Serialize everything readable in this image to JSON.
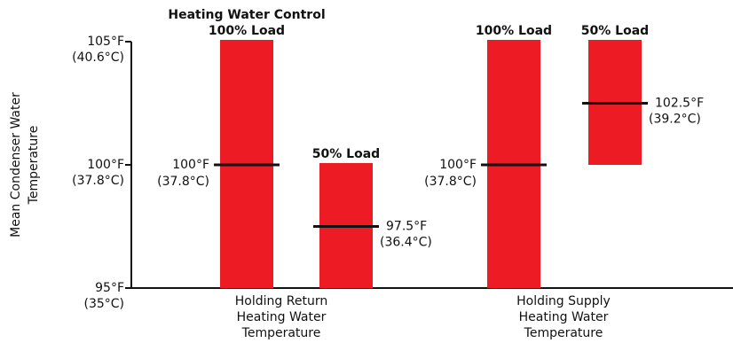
{
  "chart_data": {
    "type": "bar",
    "ylabel": [
      "Mean Condenser Water",
      "Temperature"
    ],
    "ylim": [
      95,
      105
    ],
    "y_ticks": [
      {
        "value": 105,
        "label_f": "105°F",
        "label_c": "(40.6°C)"
      },
      {
        "value": 100,
        "label_f": "100°F",
        "label_c": "(37.8°C)"
      },
      {
        "value": 95,
        "label_f": "95°F",
        "label_c": "(35°C)"
      }
    ],
    "groups": [
      {
        "label": [
          "Holding Return",
          "Heating Water",
          "Temperature"
        ],
        "bars": [
          {
            "title": [
              "Heating Water Control",
              "100% Load"
            ],
            "low": 95,
            "high": 105,
            "mean": 100,
            "mean_label_f": "100°F",
            "mean_label_c": "(37.8°C)",
            "label_side": "left"
          },
          {
            "title": [
              "50% Load"
            ],
            "low": 95,
            "high": 100,
            "mean": 97.5,
            "mean_label_f": "97.5°F",
            "mean_label_c": "(36.4°C)",
            "label_side": "right"
          }
        ]
      },
      {
        "label": [
          "Holding Supply",
          "Heating Water",
          "Temperature"
        ],
        "bars": [
          {
            "title": [
              "100% Load"
            ],
            "low": 95,
            "high": 105,
            "mean": 100,
            "mean_label_f": "100°F",
            "mean_label_c": "(37.8°C)",
            "label_side": "left"
          },
          {
            "title": [
              "50% Load"
            ],
            "low": 100,
            "high": 105,
            "mean": 102.5,
            "mean_label_f": "102.5°F",
            "mean_label_c": "(39.2°C)",
            "label_side": "right"
          }
        ]
      }
    ],
    "colors": {
      "bar": "#ed1c24",
      "mean_line": "#111111",
      "axis": "#111111"
    }
  }
}
